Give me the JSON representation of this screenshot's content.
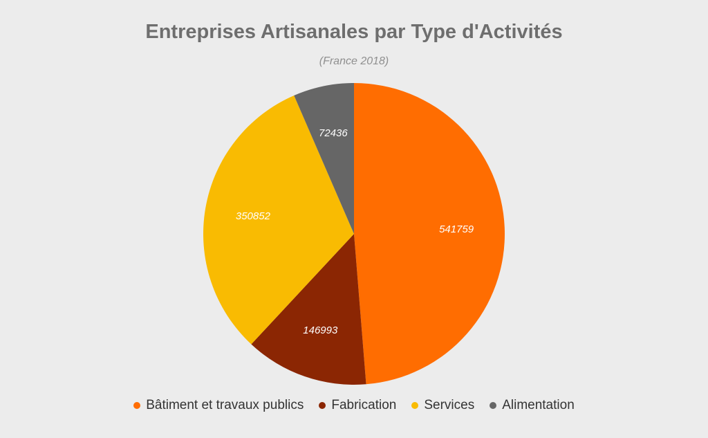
{
  "chart_data": {
    "type": "pie",
    "title": "Entreprises Artisanales par Type d'Activités",
    "subtitle": "(France 2018)",
    "legend_position": "bottom",
    "slices": [
      {
        "label": "Bâtiment et travaux publics",
        "value": 541759,
        "color": "#ff6d01"
      },
      {
        "label": "Fabrication",
        "value": 146993,
        "color": "#8b2603"
      },
      {
        "label": "Services",
        "value": 350852,
        "color": "#f9bb02"
      },
      {
        "label": "Alimentation",
        "value": 72436,
        "color": "#666666"
      }
    ]
  }
}
